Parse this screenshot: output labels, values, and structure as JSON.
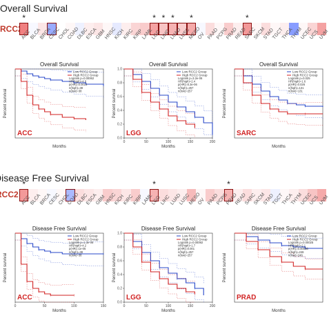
{
  "colors": {
    "low_group": "#2747c8",
    "high_group": "#d12222",
    "marked_border": "#8a1010",
    "gene_label": "#c0392b",
    "cancer_label": "#d12222"
  },
  "cancer_types": [
    "ACC",
    "BLCA",
    "BRCA",
    "CESC",
    "CHOL",
    "COAD",
    "DLBC",
    "ESCA",
    "GBM",
    "HNSC",
    "KICH",
    "KIRC",
    "KIRP",
    "LAML",
    "LGG",
    "LIHC",
    "LUAD",
    "LUSC",
    "MESO",
    "OV",
    "PAAD",
    "PCPG",
    "PRAD",
    "READ",
    "SARC",
    "SKCM",
    "STAD",
    "TGCT",
    "THCA",
    "THYM",
    "UCEC",
    "UCS",
    "UVM"
  ],
  "sections": [
    {
      "title": "Overall Survival",
      "gene": "RCC2",
      "heat_values": [
        0.75,
        -0.05,
        0.15,
        -0.6,
        0.0,
        0.05,
        -0.1,
        0.1,
        0.15,
        0.05,
        -0.15,
        0.1,
        0.25,
        0.3,
        0.55,
        0.35,
        0.45,
        0.3,
        0.5,
        -0.05,
        0.2,
        0.05,
        0.3,
        0.1,
        0.6,
        0.05,
        0.2,
        0.05,
        0.1,
        -0.7,
        0.05,
        0.25,
        0.55
      ],
      "marked": [
        0,
        3,
        14,
        15,
        16,
        17,
        18,
        24
      ],
      "starred": [
        0,
        14,
        15,
        16,
        18,
        24
      ]
    },
    {
      "title": "Disease Free Survival",
      "gene": "RCC2",
      "heat_values": [
        0.6,
        0.1,
        0.05,
        -0.05,
        0.05,
        -0.5,
        0.2,
        0.15,
        0.1,
        0.3,
        0.25,
        0.15,
        0.3,
        -0.05,
        0.45,
        0.2,
        0.15,
        0.1,
        0.4,
        0.05,
        0.3,
        0.2,
        0.45,
        0.1,
        0.2,
        0.1,
        0.15,
        -0.1,
        0.05,
        0.1,
        0.2,
        0.35,
        0.5
      ],
      "marked": [
        0,
        5,
        14,
        22
      ],
      "starred": [
        0,
        14,
        22
      ]
    }
  ],
  "chart_data": [
    {
      "type": "line",
      "title": "Overall Survival",
      "cancer": "ACC",
      "xlabel": "Months",
      "ylabel": "Percent survival",
      "xlim": [
        0,
        150
      ],
      "ylim": [
        0,
        1
      ],
      "series": [
        {
          "name": "Low RCC2 Group",
          "x": [
            0,
            10,
            20,
            30,
            40,
            50,
            60,
            80,
            100,
            120,
            150
          ],
          "y": [
            1.0,
            0.97,
            0.93,
            0.9,
            0.88,
            0.86,
            0.84,
            0.82,
            0.8,
            0.78,
            0.76
          ]
        },
        {
          "name": "High RCC2 Group",
          "x": [
            0,
            10,
            20,
            30,
            40,
            50,
            60,
            80,
            100,
            120
          ],
          "y": [
            1.0,
            0.82,
            0.62,
            0.48,
            0.42,
            0.38,
            0.34,
            0.3,
            0.28,
            0.26
          ]
        }
      ],
      "stats": [
        "Logrank p=0.00062",
        "HR(high)=4.6",
        "p(HR)=0.0014",
        "n(high)=38",
        "n(low)=38"
      ]
    },
    {
      "type": "line",
      "title": "Overall Survival",
      "cancer": "LGG",
      "xlabel": "Months",
      "ylabel": "Percent survival",
      "xlim": [
        0,
        200
      ],
      "ylim": [
        0,
        1
      ],
      "xticks": [
        0,
        50,
        100,
        150,
        200
      ],
      "yticks": [
        0,
        0.2,
        0.4,
        0.6,
        0.8,
        1.0
      ],
      "series": [
        {
          "name": "Low RCC2 Group",
          "x": [
            0,
            20,
            40,
            60,
            80,
            100,
            120,
            140,
            160,
            180,
            200
          ],
          "y": [
            1.0,
            0.92,
            0.82,
            0.72,
            0.62,
            0.52,
            0.45,
            0.38,
            0.3,
            0.22,
            0.05
          ]
        },
        {
          "name": "High RCC2 Group",
          "x": [
            0,
            20,
            40,
            60,
            80,
            100,
            120,
            140,
            160
          ],
          "y": [
            1.0,
            0.85,
            0.66,
            0.52,
            0.42,
            0.32,
            0.25,
            0.2,
            0.15
          ]
        }
      ],
      "stats": [
        "Logrank p=3.2e-06",
        "HR(high)=2.4",
        "p(HR)=5.3e-06",
        "n(high)=257",
        "n(low)=257"
      ]
    },
    {
      "type": "line",
      "title": "Overall Survival",
      "cancer": "SARC",
      "xlabel": "Months",
      "ylabel": "Percent survival",
      "xlim": [
        0,
        200
      ],
      "ylim": [
        0,
        1
      ],
      "series": [
        {
          "name": "Low RCC2 Group",
          "x": [
            0,
            20,
            40,
            60,
            80,
            100,
            120,
            140,
            160,
            200
          ],
          "y": [
            1.0,
            0.9,
            0.78,
            0.68,
            0.6,
            0.55,
            0.5,
            0.48,
            0.46,
            0.45
          ]
        },
        {
          "name": "High RCC2 Group",
          "x": [
            0,
            20,
            40,
            60,
            80,
            100,
            120,
            140,
            160,
            200
          ],
          "y": [
            1.0,
            0.8,
            0.62,
            0.5,
            0.42,
            0.38,
            0.35,
            0.35,
            0.35,
            0.35
          ]
        }
      ],
      "stats": [
        "Logrank p=0.025",
        "HR(high)=1.6",
        "p(HR)=0.026",
        "n(high)=131",
        "n(low)=131"
      ]
    },
    {
      "type": "line",
      "title": "Disease Free Survival",
      "cancer": "ACC",
      "xlabel": "Months",
      "ylabel": "Percent survival",
      "xlim": [
        0,
        150
      ],
      "ylim": [
        0,
        1
      ],
      "xticks": [
        0,
        50,
        100,
        150
      ],
      "series": [
        {
          "name": "Low RCC2 Group",
          "x": [
            0,
            10,
            20,
            30,
            40,
            50,
            60,
            80,
            100,
            120,
            150
          ],
          "y": [
            1.0,
            0.92,
            0.85,
            0.8,
            0.76,
            0.74,
            0.72,
            0.7,
            0.7,
            0.7,
            0.7
          ]
        },
        {
          "name": "High RCC2 Group",
          "x": [
            0,
            10,
            20,
            30,
            40,
            50,
            60,
            80,
            100
          ],
          "y": [
            1.0,
            0.55,
            0.3,
            0.2,
            0.15,
            0.12,
            0.1,
            0.1,
            0.1
          ]
        }
      ],
      "stats": [
        "Logrank p=1.3e-06",
        "HR(high)=4.2",
        "p(HR)=1e-05",
        "n(high)=38",
        "n(low)=38"
      ]
    },
    {
      "type": "line",
      "title": "Disease Free Survival",
      "cancer": "LGG",
      "xlabel": "Months",
      "ylabel": "Percent survival",
      "xlim": [
        0,
        200
      ],
      "ylim": [
        0,
        1
      ],
      "xticks": [
        0,
        50,
        100,
        150,
        200
      ],
      "yticks": [
        0,
        0.2,
        0.4,
        0.6,
        0.8,
        1.0
      ],
      "series": [
        {
          "name": "Low RCC2 Group",
          "x": [
            0,
            20,
            40,
            60,
            80,
            100,
            120,
            140,
            160,
            180
          ],
          "y": [
            1.0,
            0.88,
            0.72,
            0.6,
            0.5,
            0.42,
            0.34,
            0.28,
            0.2,
            0.1
          ]
        },
        {
          "name": "High RCC2 Group",
          "x": [
            0,
            20,
            40,
            60,
            80,
            100,
            120,
            140,
            160
          ],
          "y": [
            1.0,
            0.8,
            0.58,
            0.44,
            0.34,
            0.26,
            0.2,
            0.15,
            0.12
          ]
        }
      ],
      "stats": [
        "Logrank p=0.00092",
        "HR(high)=1.7",
        "p(HR)=0.001",
        "n(high)=257",
        "n(low)=257"
      ]
    },
    {
      "type": "line",
      "title": "Disease Free Survival",
      "cancer": "PRAD",
      "xlabel": "Months",
      "ylabel": "Percent survival",
      "xlim": [
        0,
        150
      ],
      "ylim": [
        0,
        1
      ],
      "series": [
        {
          "name": "Low RCC2 Group",
          "x": [
            0,
            20,
            40,
            60,
            80,
            100,
            120,
            150
          ],
          "y": [
            1.0,
            0.95,
            0.9,
            0.86,
            0.82,
            0.8,
            0.78,
            0.78
          ]
        },
        {
          "name": "High RCC2 Group",
          "x": [
            0,
            20,
            40,
            60,
            80,
            100,
            120,
            150
          ],
          "y": [
            1.0,
            0.88,
            0.76,
            0.66,
            0.58,
            0.52,
            0.48,
            0.48
          ]
        }
      ],
      "stats": [
        "Logrank p=0.00025",
        "HR(high)=2.1",
        "p(HR)=0.00036",
        "n(high)=246",
        "n(low)=246"
      ]
    }
  ]
}
